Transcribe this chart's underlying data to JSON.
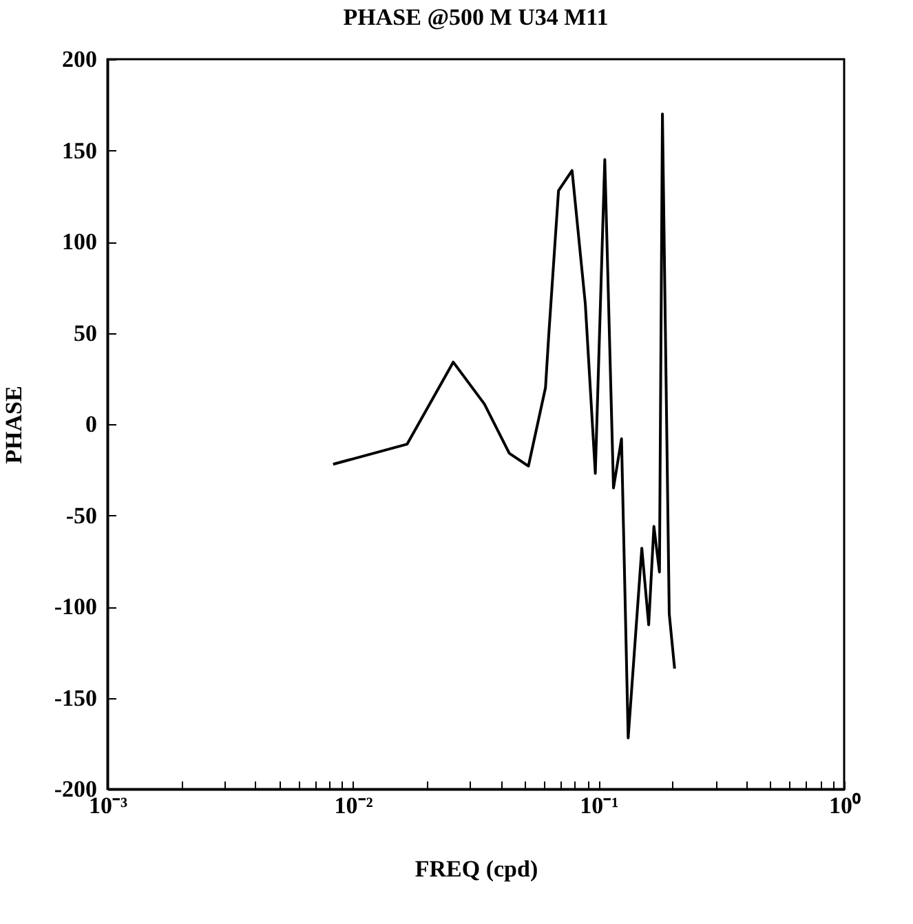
{
  "chart_data": {
    "type": "line",
    "title": "PHASE @500 M  U34 M11",
    "xlabel": "FREQ (cpd)",
    "ylabel": "PHASE",
    "log": "x",
    "grid": false,
    "marker": "none",
    "line_style": "solid",
    "xlim": [
      0.001,
      1
    ],
    "ylim": [
      -200,
      200
    ],
    "xticks": [
      {
        "value": 0.001,
        "label": "10⁻³"
      },
      {
        "value": 0.002,
        "label": null
      },
      {
        "value": 0.003,
        "label": null
      },
      {
        "value": 0.004,
        "label": null
      },
      {
        "value": 0.005,
        "label": null
      },
      {
        "value": 0.006,
        "label": null
      },
      {
        "value": 0.007,
        "label": null
      },
      {
        "value": 0.008,
        "label": null
      },
      {
        "value": 0.009,
        "label": null
      },
      {
        "value": 0.01,
        "label": "10⁻²"
      },
      {
        "value": 0.02,
        "label": null
      },
      {
        "value": 0.03,
        "label": null
      },
      {
        "value": 0.04,
        "label": null
      },
      {
        "value": 0.05,
        "label": null
      },
      {
        "value": 0.06,
        "label": null
      },
      {
        "value": 0.07,
        "label": null
      },
      {
        "value": 0.08,
        "label": null
      },
      {
        "value": 0.09,
        "label": null
      },
      {
        "value": 0.1,
        "label": "10⁻¹"
      },
      {
        "value": 0.2,
        "label": null
      },
      {
        "value": 0.3,
        "label": null
      },
      {
        "value": 0.4,
        "label": null
      },
      {
        "value": 0.5,
        "label": null
      },
      {
        "value": 0.6,
        "label": null
      },
      {
        "value": 0.7,
        "label": null
      },
      {
        "value": 0.8,
        "label": null
      },
      {
        "value": 0.9,
        "label": null
      },
      {
        "value": 1,
        "label": "10⁰"
      }
    ],
    "yticks": [
      -200,
      -150,
      -100,
      -50,
      0,
      50,
      100,
      150,
      200
    ],
    "x": [
      0.0083,
      0.0166,
      0.0256,
      0.0343,
      0.0433,
      0.0518,
      0.0608,
      0.0627,
      0.0687,
      0.078,
      0.0883,
      0.097,
      0.106,
      0.115,
      0.124,
      0.132,
      0.15,
      0.16,
      0.168,
      0.177,
      0.182,
      0.194,
      0.204
    ],
    "series": [
      {
        "color": "#000000",
        "values": [
          -22,
          -11,
          34,
          11,
          -16,
          -23,
          20,
          49,
          128,
          139,
          66,
          -27,
          145,
          -35,
          -8,
          -172,
          -68,
          -110,
          -56,
          -81,
          170,
          -104,
          -134
        ]
      }
    ]
  }
}
